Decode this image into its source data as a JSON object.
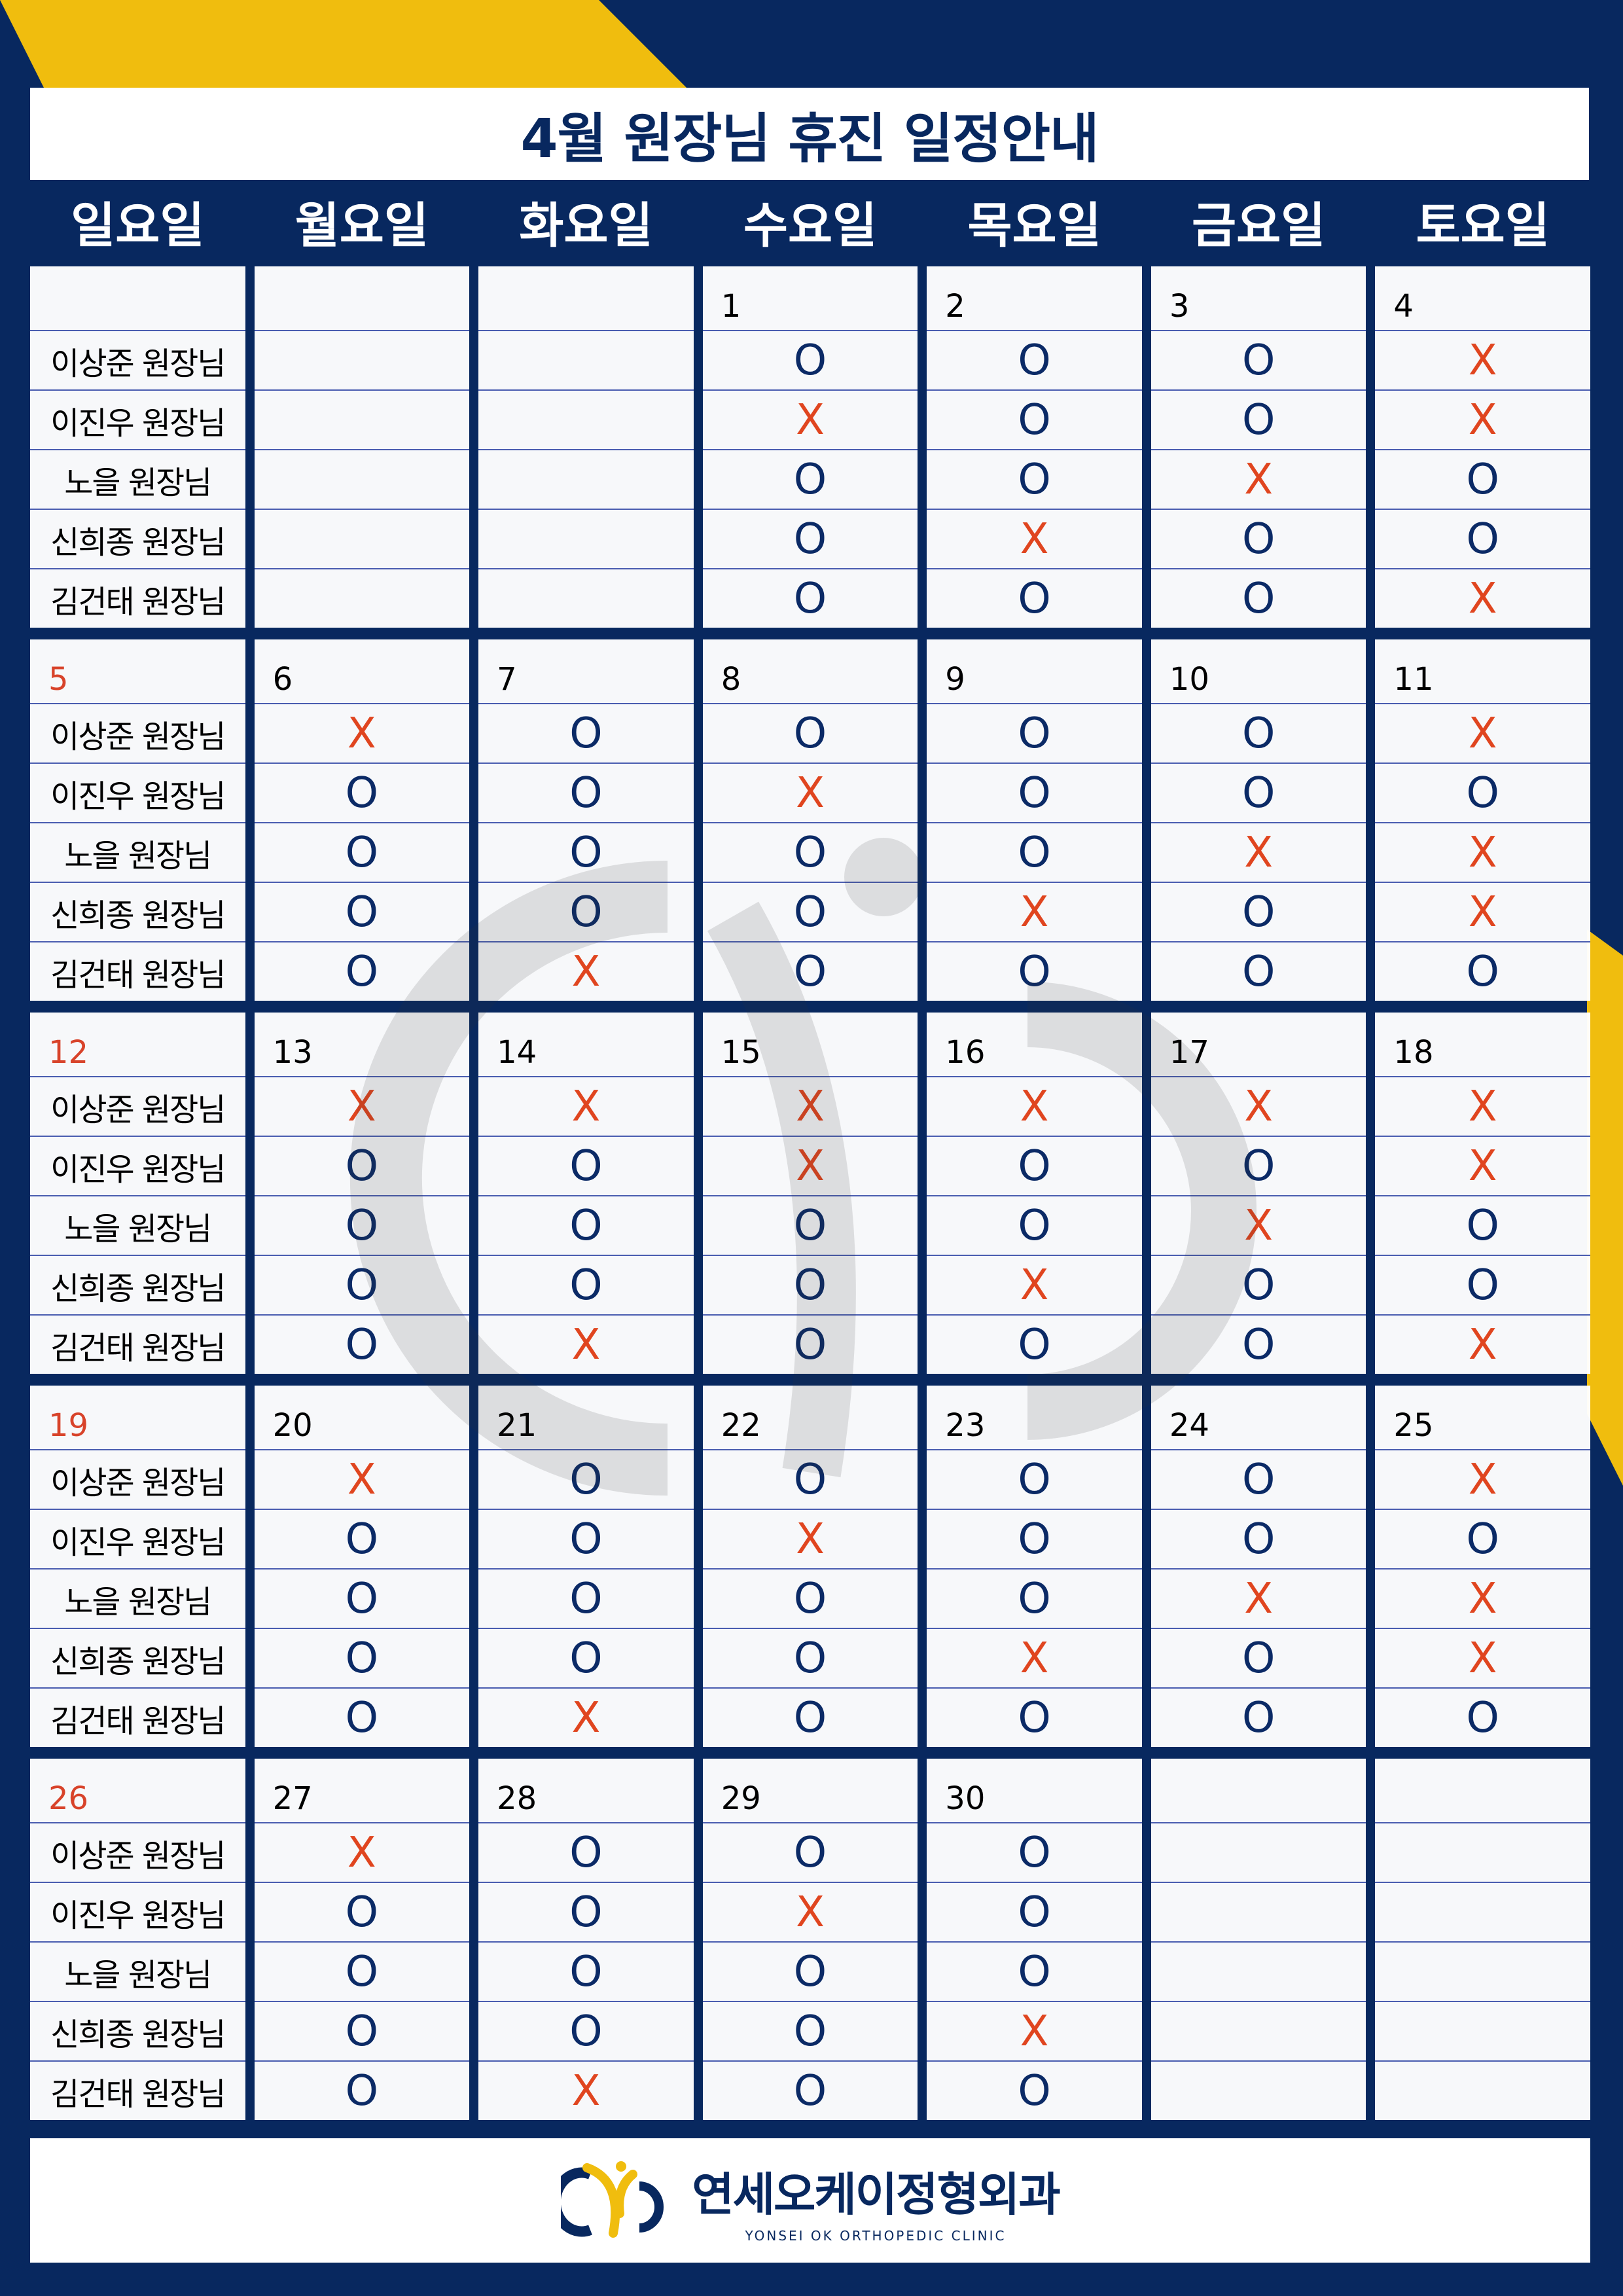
{
  "title": "4월 원장님 휴진 일정안내",
  "weekdays": [
    "일요일",
    "월요일",
    "화요일",
    "수요일",
    "목요일",
    "금요일",
    "토요일"
  ],
  "doctors": [
    "이상준 원장님",
    "이진우 원장님",
    "노을 원장님",
    "신희종 원장님",
    "김건태 원장님"
  ],
  "colors": {
    "background": "#08285f",
    "accent": "#f0bd0e",
    "open": "#0b2a66",
    "closed": "#e0451f",
    "sunday": "#d8432a"
  },
  "legend": {
    "open_mark": "O",
    "closed_mark": "X"
  },
  "weeks": [
    {
      "sunday": "",
      "days": [
        {
          "date": "",
          "marks": []
        },
        {
          "date": "",
          "marks": []
        },
        {
          "date": "1",
          "marks": [
            "O",
            "X",
            "O",
            "O",
            "O"
          ]
        },
        {
          "date": "2",
          "marks": [
            "O",
            "O",
            "O",
            "X",
            "O"
          ]
        },
        {
          "date": "3",
          "marks": [
            "O",
            "O",
            "X",
            "O",
            "O"
          ]
        },
        {
          "date": "4",
          "marks": [
            "X",
            "X",
            "O",
            "O",
            "X"
          ]
        }
      ]
    },
    {
      "sunday": "5",
      "days": [
        {
          "date": "6",
          "marks": [
            "X",
            "O",
            "O",
            "O",
            "O"
          ]
        },
        {
          "date": "7",
          "marks": [
            "O",
            "O",
            "O",
            "O",
            "X"
          ]
        },
        {
          "date": "8",
          "marks": [
            "O",
            "X",
            "O",
            "O",
            "O"
          ]
        },
        {
          "date": "9",
          "marks": [
            "O",
            "O",
            "O",
            "X",
            "O"
          ]
        },
        {
          "date": "10",
          "marks": [
            "O",
            "O",
            "X",
            "O",
            "O"
          ]
        },
        {
          "date": "11",
          "marks": [
            "X",
            "O",
            "X",
            "X",
            "O"
          ]
        }
      ]
    },
    {
      "sunday": "12",
      "days": [
        {
          "date": "13",
          "marks": [
            "X",
            "O",
            "O",
            "O",
            "O"
          ]
        },
        {
          "date": "14",
          "marks": [
            "X",
            "O",
            "O",
            "O",
            "X"
          ]
        },
        {
          "date": "15",
          "marks": [
            "X",
            "X",
            "O",
            "O",
            "O"
          ]
        },
        {
          "date": "16",
          "marks": [
            "X",
            "O",
            "O",
            "X",
            "O"
          ]
        },
        {
          "date": "17",
          "marks": [
            "X",
            "O",
            "X",
            "O",
            "O"
          ]
        },
        {
          "date": "18",
          "marks": [
            "X",
            "X",
            "O",
            "O",
            "X"
          ]
        }
      ]
    },
    {
      "sunday": "19",
      "days": [
        {
          "date": "20",
          "marks": [
            "X",
            "O",
            "O",
            "O",
            "O"
          ]
        },
        {
          "date": "21",
          "marks": [
            "O",
            "O",
            "O",
            "O",
            "X"
          ]
        },
        {
          "date": "22",
          "marks": [
            "O",
            "X",
            "O",
            "O",
            "O"
          ]
        },
        {
          "date": "23",
          "marks": [
            "O",
            "O",
            "O",
            "X",
            "O"
          ]
        },
        {
          "date": "24",
          "marks": [
            "O",
            "O",
            "X",
            "O",
            "O"
          ]
        },
        {
          "date": "25",
          "marks": [
            "X",
            "O",
            "X",
            "X",
            "O"
          ]
        }
      ]
    },
    {
      "sunday": "26",
      "days": [
        {
          "date": "27",
          "marks": [
            "X",
            "O",
            "O",
            "O",
            "O"
          ]
        },
        {
          "date": "28",
          "marks": [
            "O",
            "O",
            "O",
            "O",
            "X"
          ]
        },
        {
          "date": "29",
          "marks": [
            "O",
            "X",
            "O",
            "O",
            "O"
          ]
        },
        {
          "date": "30",
          "marks": [
            "O",
            "O",
            "O",
            "X",
            "O"
          ]
        },
        {
          "date": "",
          "marks": []
        },
        {
          "date": "",
          "marks": []
        }
      ]
    }
  ],
  "footer": {
    "clinic_name_ko": "연세오케이정형외과",
    "clinic_name_en": "YONSEI OK ORTHOPEDIC CLINIC",
    "logo_icon": "clinic-logo-icon"
  }
}
